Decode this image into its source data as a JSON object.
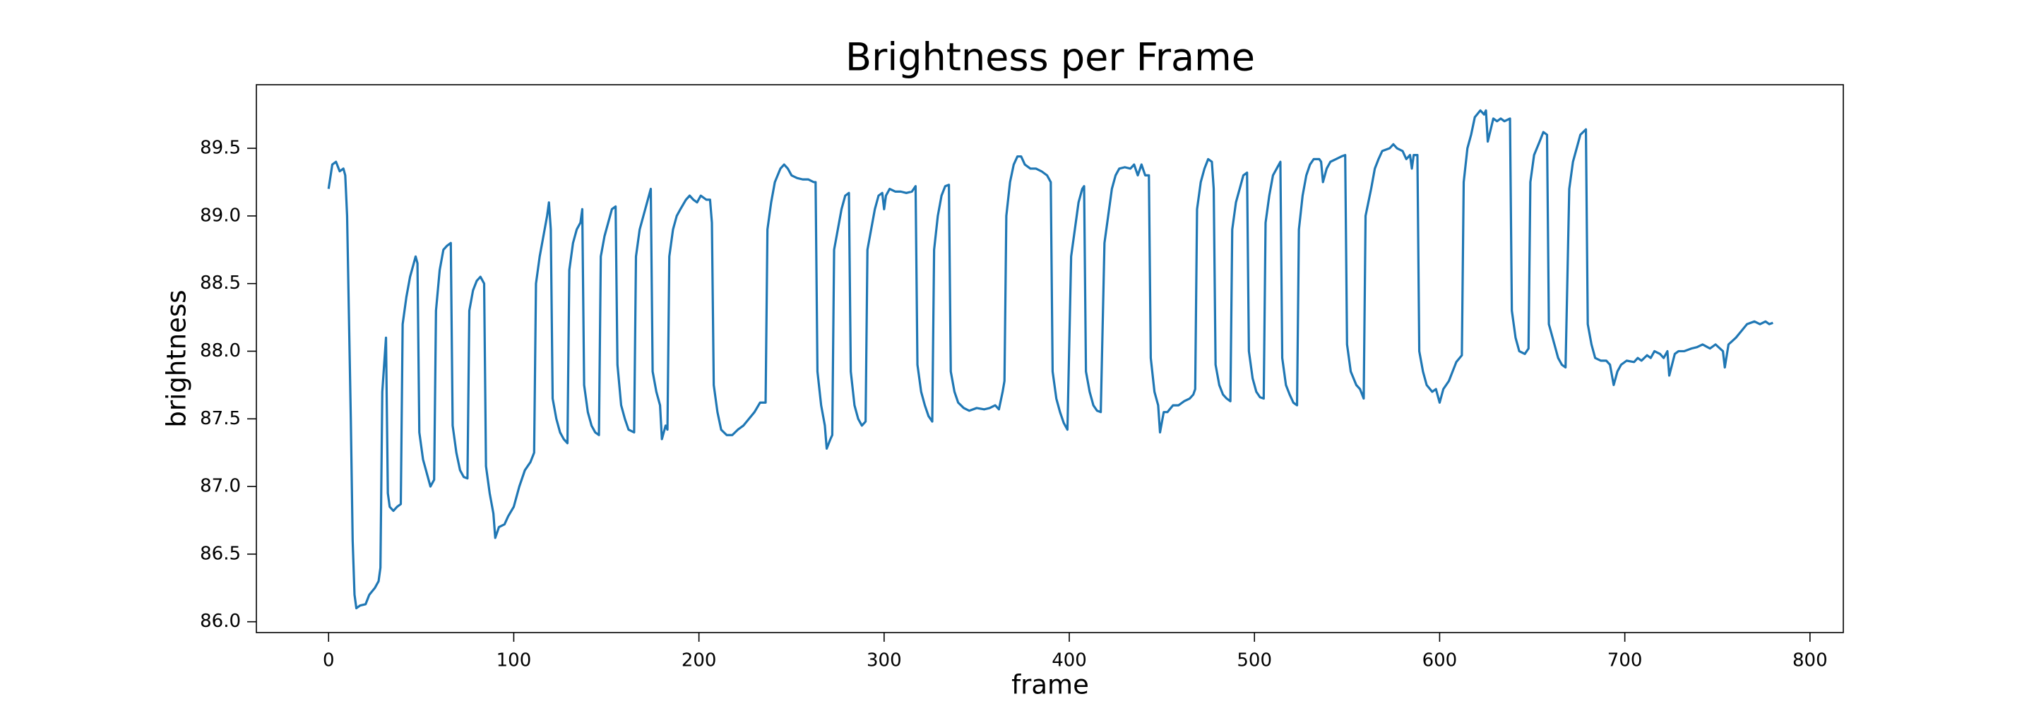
{
  "chart_data": {
    "type": "line",
    "title": "Brightness per Frame",
    "x_label": "frame",
    "y_label": "brightness",
    "color": "#1f77b4",
    "xlim": [
      -39,
      818
    ],
    "xticks": [
      0,
      100,
      200,
      300,
      400,
      500,
      600,
      700,
      800
    ],
    "ylim": [
      85.92,
      89.97
    ],
    "yticks": [
      {
        "value": 86,
        "label": "86.0"
      },
      86.5,
      {
        "value": 87,
        "label": "87.0"
      },
      87.5,
      {
        "value": 88,
        "label": "88.0"
      },
      88.5,
      {
        "value": 89,
        "label": "89.0"
      },
      89.5
    ],
    "x": [
      0,
      2,
      4,
      6,
      8,
      9,
      10,
      12,
      13,
      14,
      15,
      17,
      20,
      22,
      25,
      27,
      28,
      29,
      31,
      32,
      33,
      35,
      37,
      39,
      40,
      42,
      44,
      46,
      47,
      48,
      49,
      51,
      53,
      55,
      57,
      58,
      60,
      62,
      64,
      66,
      67,
      69,
      71,
      73,
      75,
      76,
      78,
      80,
      82,
      84,
      85,
      87,
      89,
      90,
      92,
      95,
      97,
      100,
      103,
      106,
      109,
      111,
      112,
      114,
      116,
      118,
      119,
      120,
      121,
      123,
      125,
      127,
      129,
      130,
      132,
      134,
      136,
      137,
      138,
      140,
      142,
      144,
      146,
      147,
      149,
      151,
      153,
      155,
      156,
      158,
      160,
      162,
      165,
      166,
      168,
      170,
      172,
      174,
      175,
      177,
      179,
      180,
      182,
      183,
      184,
      186,
      188,
      190,
      193,
      195,
      197,
      199,
      201,
      204,
      206,
      207,
      208,
      210,
      212,
      215,
      218,
      221,
      224,
      227,
      230,
      233,
      236,
      237,
      239,
      241,
      244,
      246,
      248,
      250,
      253,
      256,
      259,
      262,
      263,
      264,
      266,
      268,
      269,
      271,
      272,
      273,
      275,
      277,
      279,
      281,
      282,
      284,
      286,
      288,
      290,
      291,
      293,
      295,
      297,
      299,
      300,
      301,
      303,
      306,
      309,
      312,
      315,
      317,
      318,
      320,
      322,
      324,
      326,
      327,
      329,
      331,
      333,
      335,
      336,
      338,
      340,
      343,
      346,
      350,
      354,
      357,
      360,
      362,
      364,
      365,
      366,
      368,
      370,
      372,
      374,
      376,
      379,
      382,
      385,
      388,
      390,
      391,
      393,
      395,
      397,
      399,
      401,
      403,
      405,
      407,
      408,
      409,
      411,
      413,
      415,
      417,
      419,
      421,
      423,
      425,
      427,
      430,
      433,
      435,
      437,
      439,
      441,
      443,
      444,
      446,
      448,
      449,
      451,
      453,
      456,
      459,
      462,
      465,
      467,
      468,
      469,
      471,
      473,
      475,
      477,
      478,
      479,
      481,
      483,
      485,
      487,
      488,
      490,
      492,
      494,
      496,
      497,
      499,
      501,
      503,
      505,
      506,
      508,
      510,
      512,
      514,
      515,
      517,
      519,
      521,
      523,
      524,
      526,
      528,
      530,
      532,
      535,
      536,
      537,
      539,
      541,
      544,
      547,
      549,
      550,
      552,
      555,
      557,
      559,
      560,
      563,
      565,
      567,
      569,
      573,
      575,
      577,
      580,
      582,
      584,
      585,
      586,
      588,
      589,
      591,
      593,
      596,
      598,
      600,
      602,
      605,
      607,
      609,
      612,
      613,
      615,
      617,
      619,
      622,
      624,
      625,
      626,
      629,
      631,
      633,
      635,
      638,
      639,
      641,
      643,
      646,
      648,
      649,
      651,
      654,
      656,
      658,
      659,
      662,
      664,
      666,
      668,
      670,
      672,
      674,
      676,
      679,
      680,
      682,
      684,
      687,
      690,
      692,
      694,
      696,
      698,
      701,
      705,
      707,
      709,
      712,
      714,
      716,
      719,
      721,
      723,
      724,
      727,
      729,
      732,
      736,
      739,
      742,
      746,
      749,
      753,
      754,
      756,
      760,
      763,
      766,
      770,
      773,
      776,
      778,
      780
    ],
    "values": [
      89.2,
      89.38,
      89.4,
      89.33,
      89.35,
      89.3,
      89.0,
      87.5,
      86.6,
      86.2,
      86.1,
      86.12,
      86.13,
      86.2,
      86.25,
      86.3,
      86.4,
      87.7,
      88.1,
      86.95,
      86.85,
      86.82,
      86.85,
      86.87,
      88.2,
      88.4,
      88.55,
      88.65,
      88.7,
      88.65,
      87.4,
      87.2,
      87.1,
      87.0,
      87.05,
      88.3,
      88.6,
      88.75,
      88.78,
      88.8,
      87.45,
      87.25,
      87.12,
      87.07,
      87.06,
      88.3,
      88.45,
      88.52,
      88.55,
      88.5,
      87.15,
      86.95,
      86.8,
      86.62,
      86.7,
      86.72,
      86.78,
      86.85,
      87.0,
      87.12,
      87.18,
      87.25,
      88.5,
      88.7,
      88.85,
      89.0,
      89.1,
      88.9,
      87.65,
      87.5,
      87.4,
      87.35,
      87.32,
      88.6,
      88.8,
      88.9,
      88.95,
      89.05,
      87.75,
      87.55,
      87.45,
      87.4,
      87.38,
      88.7,
      88.85,
      88.95,
      89.05,
      89.07,
      87.9,
      87.6,
      87.5,
      87.42,
      87.4,
      88.7,
      88.9,
      89.0,
      89.1,
      89.2,
      87.85,
      87.7,
      87.6,
      87.35,
      87.45,
      87.42,
      88.7,
      88.9,
      89.0,
      89.05,
      89.12,
      89.15,
      89.12,
      89.1,
      89.15,
      89.12,
      89.12,
      88.95,
      87.75,
      87.55,
      87.42,
      87.38,
      87.38,
      87.42,
      87.45,
      87.5,
      87.55,
      87.62,
      87.62,
      88.9,
      89.1,
      89.25,
      89.35,
      89.38,
      89.35,
      89.3,
      89.28,
      89.27,
      89.27,
      89.25,
      89.25,
      87.85,
      87.6,
      87.45,
      87.28,
      87.35,
      87.38,
      88.75,
      88.9,
      89.05,
      89.15,
      89.17,
      87.85,
      87.6,
      87.5,
      87.45,
      87.48,
      88.75,
      88.9,
      89.05,
      89.15,
      89.17,
      89.05,
      89.15,
      89.2,
      89.18,
      89.18,
      89.17,
      89.18,
      89.22,
      87.9,
      87.7,
      87.6,
      87.52,
      87.48,
      88.75,
      89.0,
      89.15,
      89.22,
      89.23,
      87.85,
      87.7,
      87.62,
      87.58,
      87.56,
      87.58,
      87.57,
      87.58,
      87.6,
      87.57,
      87.7,
      87.78,
      89.0,
      89.25,
      89.38,
      89.44,
      89.44,
      89.38,
      89.35,
      89.35,
      89.33,
      89.3,
      89.25,
      87.85,
      87.65,
      87.55,
      87.47,
      87.42,
      88.7,
      88.9,
      89.1,
      89.2,
      89.22,
      87.85,
      87.7,
      87.6,
      87.56,
      87.55,
      88.8,
      89.0,
      89.2,
      89.3,
      89.35,
      89.36,
      89.35,
      89.38,
      89.3,
      89.38,
      89.3,
      89.3,
      87.95,
      87.7,
      87.6,
      87.4,
      87.55,
      87.55,
      87.6,
      87.6,
      87.63,
      87.65,
      87.68,
      87.72,
      89.05,
      89.25,
      89.35,
      89.42,
      89.4,
      89.2,
      87.9,
      87.75,
      87.68,
      87.65,
      87.63,
      88.9,
      89.1,
      89.2,
      89.3,
      89.32,
      88.0,
      87.8,
      87.7,
      87.66,
      87.65,
      88.95,
      89.15,
      89.3,
      89.35,
      89.4,
      87.95,
      87.75,
      87.68,
      87.62,
      87.6,
      88.9,
      89.15,
      89.3,
      89.38,
      89.42,
      89.42,
      89.4,
      89.25,
      89.35,
      89.4,
      89.42,
      89.44,
      89.45,
      88.05,
      87.85,
      87.75,
      87.72,
      87.65,
      89.0,
      89.2,
      89.35,
      89.42,
      89.48,
      89.5,
      89.53,
      89.5,
      89.48,
      89.42,
      89.45,
      89.35,
      89.45,
      89.45,
      88.0,
      87.85,
      87.75,
      87.7,
      87.72,
      87.62,
      87.72,
      87.78,
      87.85,
      87.92,
      87.97,
      89.25,
      89.5,
      89.6,
      89.73,
      89.78,
      89.75,
      89.78,
      89.55,
      89.72,
      89.7,
      89.72,
      89.7,
      89.72,
      88.3,
      88.1,
      88.0,
      87.98,
      88.02,
      89.25,
      89.45,
      89.55,
      89.62,
      89.6,
      88.2,
      88.05,
      87.95,
      87.9,
      87.88,
      89.2,
      89.4,
      89.5,
      89.6,
      89.64,
      88.2,
      88.05,
      87.95,
      87.93,
      87.93,
      87.9,
      87.75,
      87.85,
      87.9,
      87.93,
      87.92,
      87.95,
      87.93,
      87.97,
      87.95,
      88.0,
      87.98,
      87.95,
      88.0,
      87.82,
      87.98,
      88.0,
      88.0,
      88.02,
      88.03,
      88.05,
      88.02,
      88.05,
      88.0,
      87.88,
      88.05,
      88.1,
      88.15,
      88.2,
      88.22,
      88.2,
      88.22,
      88.2,
      88.21
    ]
  }
}
